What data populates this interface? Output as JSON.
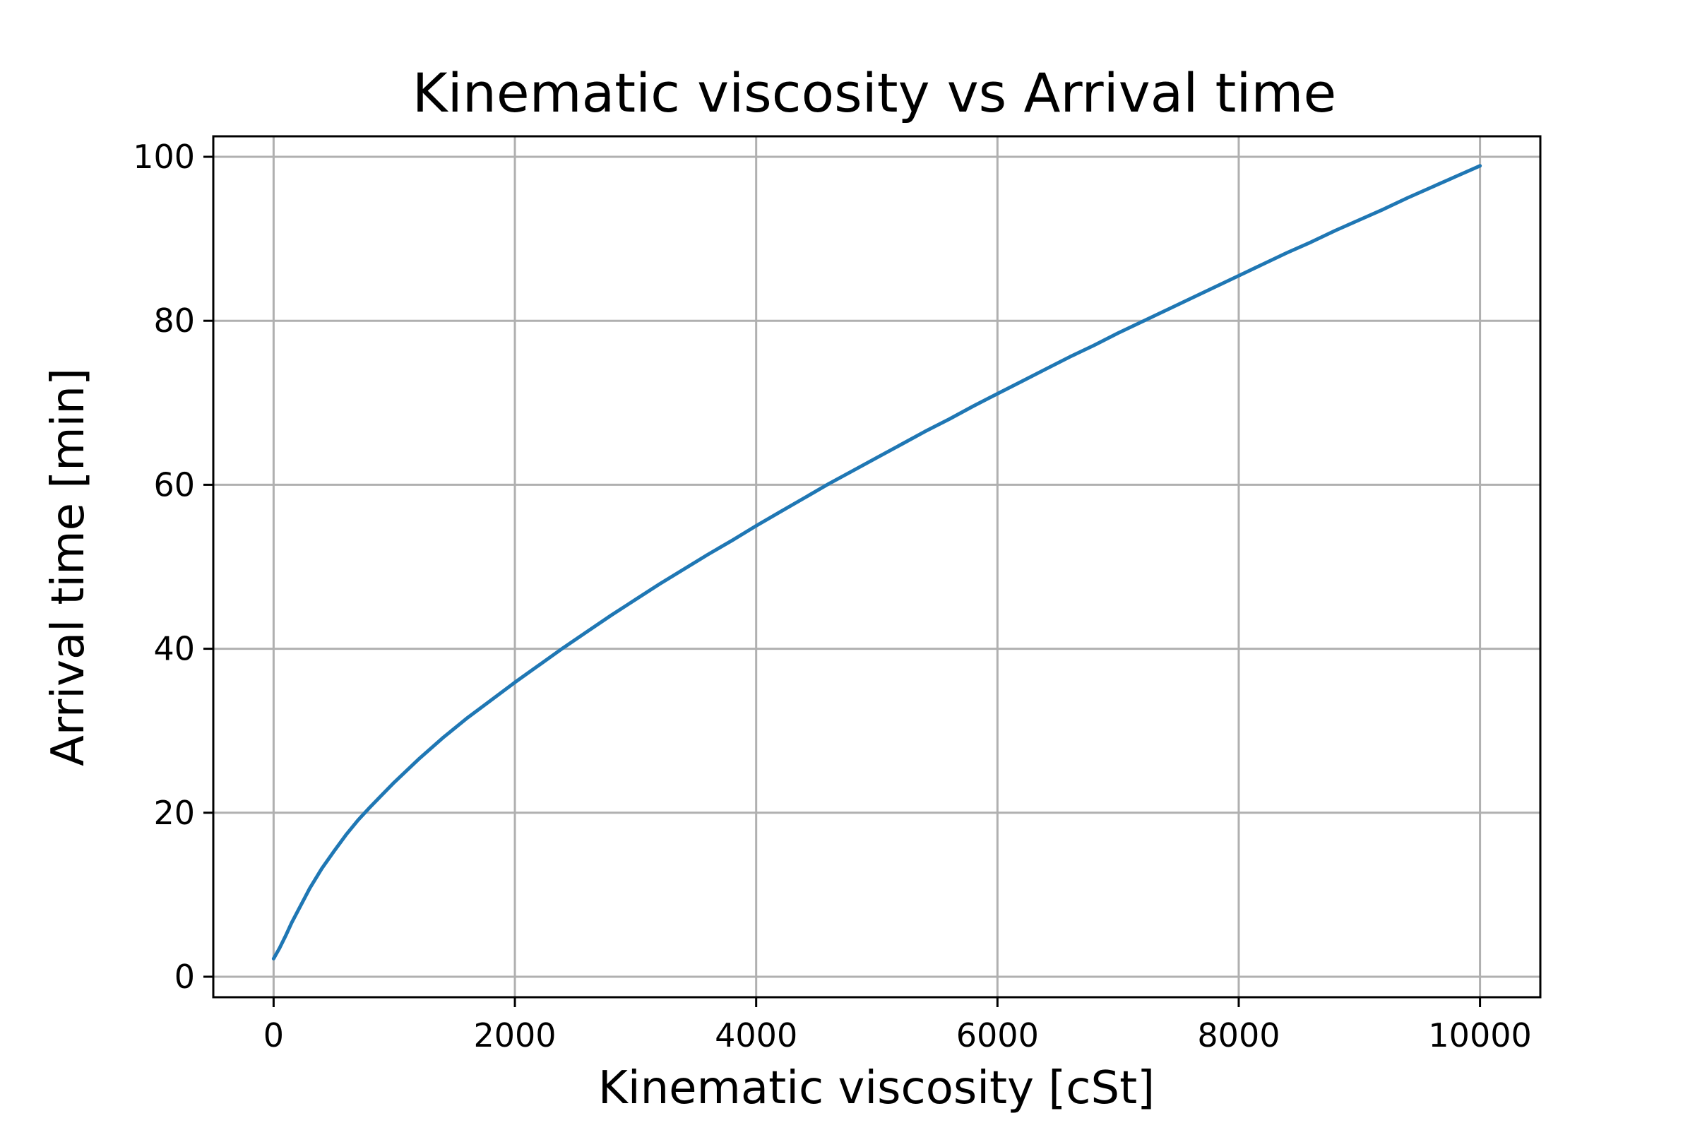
{
  "chart_data": {
    "type": "line",
    "title": "Kinematic viscosity vs Arrival time",
    "xlabel": "Kinematic viscosity [cSt]",
    "ylabel": "Arrival time [min]",
    "xlim": [
      -500,
      10500
    ],
    "ylim": [
      -2.5,
      102.5
    ],
    "x_ticks": [
      0,
      2000,
      4000,
      6000,
      8000,
      10000
    ],
    "x_tick_labels": [
      "0",
      "2000",
      "4000",
      "6000",
      "8000",
      "10000"
    ],
    "y_ticks": [
      0,
      20,
      40,
      60,
      80,
      100
    ],
    "y_tick_labels": [
      "0",
      "20",
      "40",
      "60",
      "80",
      "100"
    ],
    "grid": true,
    "series": [
      {
        "color": "#1f77b4",
        "x": [
          0,
          50,
          100,
          150,
          200,
          300,
          400,
          500,
          600,
          700,
          800,
          900,
          1000,
          1200,
          1400,
          1600,
          1800,
          2000,
          2200,
          2400,
          2600,
          2800,
          3000,
          3200,
          3400,
          3600,
          3800,
          4000,
          4200,
          4400,
          4600,
          4800,
          5000,
          5200,
          5400,
          5600,
          5800,
          6000,
          6200,
          6400,
          6600,
          6800,
          7000,
          7200,
          7400,
          7600,
          7800,
          8000,
          8200,
          8400,
          8600,
          8800,
          9000,
          9200,
          9400,
          9600,
          9800,
          10000
        ],
        "y": [
          2.2,
          3.5,
          5.0,
          6.6,
          8.0,
          10.8,
          13.2,
          15.3,
          17.3,
          19.1,
          20.7,
          22.2,
          23.7,
          26.5,
          29.1,
          31.5,
          33.7,
          35.9,
          38.0,
          40.1,
          42.1,
          44.1,
          46.0,
          47.9,
          49.7,
          51.5,
          53.2,
          55.0,
          56.7,
          58.4,
          60.1,
          61.7,
          63.3,
          64.9,
          66.5,
          68.0,
          69.6,
          71.1,
          72.6,
          74.1,
          75.6,
          77.0,
          78.5,
          79.9,
          81.3,
          82.7,
          84.1,
          85.5,
          86.9,
          88.3,
          89.6,
          91.0,
          92.3,
          93.6,
          95.0,
          96.3,
          97.6,
          98.9
        ]
      }
    ]
  }
}
